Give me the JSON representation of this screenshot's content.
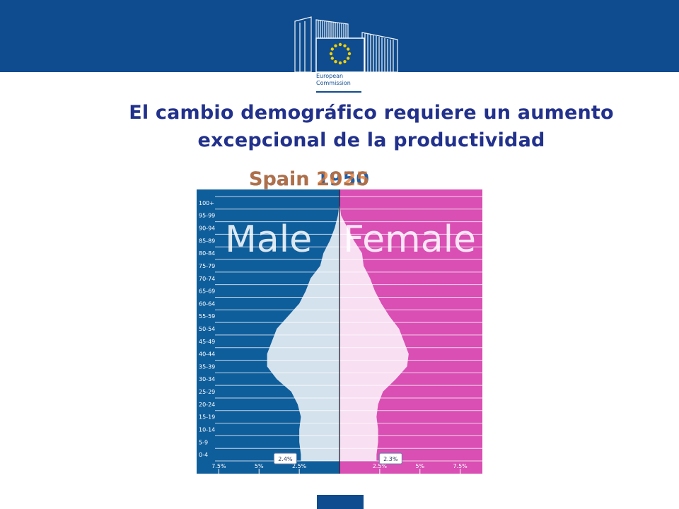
{
  "slide": {
    "title_lines": [
      "El cambio demográfico requiere un aumento",
      "excepcional de la productividad"
    ],
    "subtitle_overlap": [
      "Spain 1950",
      "Spain 2025"
    ]
  },
  "logo": {
    "line1": "European",
    "line2": "Commission"
  },
  "colors": {
    "header": "#0f4c8f",
    "male_bg": "#0f5e9c",
    "female_bg": "#d94fb4",
    "pyramid_fill": "#ffffff"
  },
  "chart_data": {
    "type": "pyramid",
    "labels": {
      "left": "Male",
      "right": "Female"
    },
    "age_groups": [
      "0-4",
      "5-9",
      "10-14",
      "15-19",
      "20-24",
      "25-29",
      "30-34",
      "35-39",
      "40-44",
      "45-49",
      "50-54",
      "55-59",
      "60-64",
      "65-69",
      "70-74",
      "75-79",
      "80-84",
      "85-89",
      "90-94",
      "95-99",
      "100+"
    ],
    "male_percent": [
      2.4,
      2.5,
      2.5,
      2.4,
      2.6,
      3.0,
      3.9,
      4.5,
      4.5,
      4.2,
      3.9,
      3.2,
      2.5,
      2.1,
      1.8,
      1.2,
      1.0,
      0.6,
      0.3,
      0.1,
      0.0
    ],
    "female_percent": [
      2.3,
      2.4,
      2.4,
      2.3,
      2.4,
      2.7,
      3.5,
      4.2,
      4.3,
      4.0,
      3.7,
      3.1,
      2.6,
      2.2,
      1.9,
      1.5,
      1.4,
      0.9,
      0.5,
      0.1,
      0.0
    ],
    "callouts": {
      "male": "2.4%",
      "female": "2.3%"
    },
    "x_ticks": {
      "male": [
        "7.5%",
        "5%",
        "2.5%"
      ],
      "female": [
        "2.5%",
        "5%",
        "7.5%"
      ]
    },
    "x_max_percent": 8
  }
}
